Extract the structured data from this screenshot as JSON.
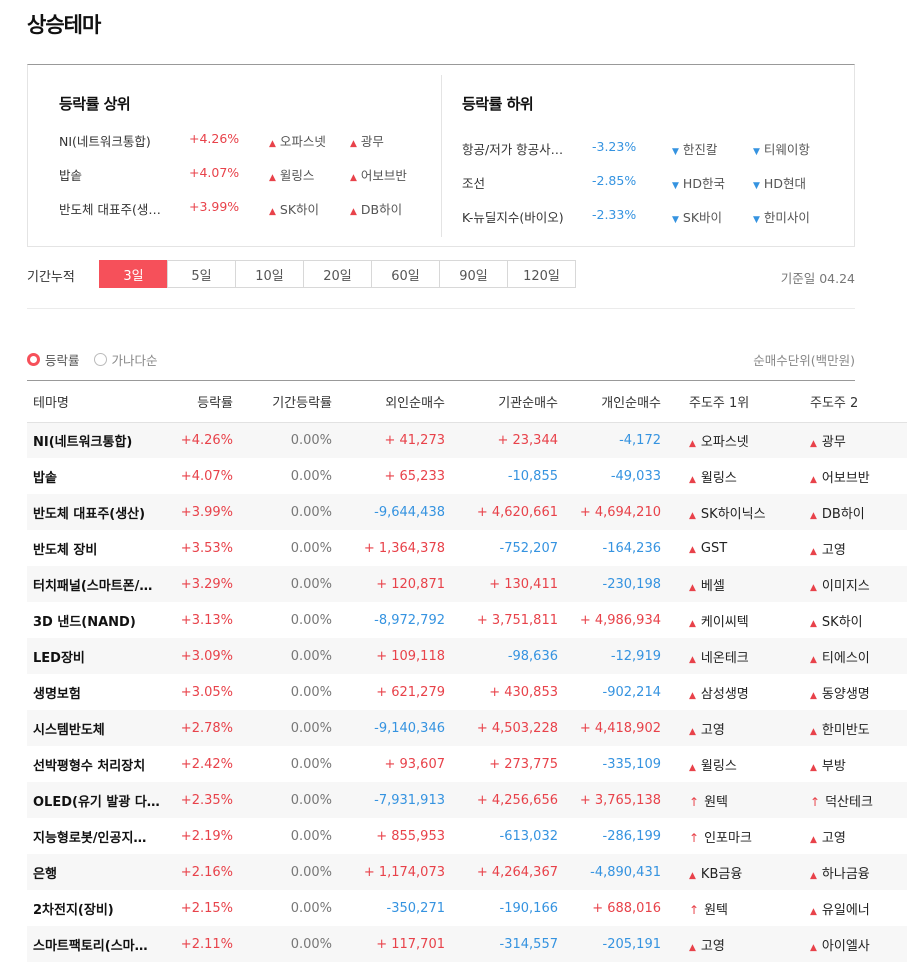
{
  "page": {
    "title": "상승테마"
  },
  "summary": {
    "top_title": "등락률 상위",
    "bottom_title": "등락률 하위",
    "top": [
      {
        "name": "NI(네트워크통합)",
        "pct": "+4.26%",
        "s1": "오파스넷",
        "s2": "광무"
      },
      {
        "name": "밥솥",
        "pct": "+4.07%",
        "s1": "윌링스",
        "s2": "어보브반"
      },
      {
        "name": "반도체 대표주(생…",
        "pct": "+3.99%",
        "s1": "SK하이",
        "s2": "DB하이"
      }
    ],
    "bottom": [
      {
        "name": "항공/저가 항공사…",
        "pct": "-3.23%",
        "s1": "한진칼",
        "s2": "티웨이항"
      },
      {
        "name": "조선",
        "pct": "-2.85%",
        "s1": "HD한국",
        "s2": "HD현대"
      },
      {
        "name": "K-뉴딜지수(바이오)",
        "pct": "-2.33%",
        "s1": "SK바이",
        "s2": "한미사이"
      }
    ]
  },
  "period": {
    "label": "기간누적",
    "tabs": [
      "3일",
      "5일",
      "10일",
      "20일",
      "60일",
      "90일",
      "120일"
    ],
    "active": 0,
    "base_date": "기준일 04.24"
  },
  "sort": {
    "option1": "등락률",
    "option2": "가나다순",
    "unit": "순매수단위(백만원)"
  },
  "table": {
    "headers": [
      "테마명",
      "등락률",
      "기간등락률",
      "외인순매수",
      "기관순매수",
      "개인순매수",
      "주도주 1위",
      "주도주 2"
    ],
    "rows": [
      {
        "name": "NI(네트워크통합)",
        "pct": "+4.26%",
        "period": "0.00%",
        "foreign": "+ 41,273",
        "inst": "+ 23,344",
        "indiv": "-4,172",
        "lead1": "오파스넷",
        "lead1_arrow": "tri",
        "lead2": "광무",
        "lead2_arrow": "tri"
      },
      {
        "name": "밥솥",
        "pct": "+4.07%",
        "period": "0.00%",
        "foreign": "+ 65,233",
        "inst": "-10,855",
        "indiv": "-49,033",
        "lead1": "윌링스",
        "lead1_arrow": "tri",
        "lead2": "어보브반",
        "lead2_arrow": "tri"
      },
      {
        "name": "반도체 대표주(생산)",
        "pct": "+3.99%",
        "period": "0.00%",
        "foreign": "-9,644,438",
        "inst": "+ 4,620,661",
        "indiv": "+ 4,694,210",
        "lead1": "SK하이닉스",
        "lead1_arrow": "tri",
        "lead2": "DB하이",
        "lead2_arrow": "tri"
      },
      {
        "name": "반도체 장비",
        "pct": "+3.53%",
        "period": "0.00%",
        "foreign": "+ 1,364,378",
        "inst": "-752,207",
        "indiv": "-164,236",
        "lead1": "GST",
        "lead1_arrow": "tri",
        "lead2": "고영",
        "lead2_arrow": "tri"
      },
      {
        "name": "터치패널(스마트폰/…",
        "pct": "+3.29%",
        "period": "0.00%",
        "foreign": "+ 120,871",
        "inst": "+ 130,411",
        "indiv": "-230,198",
        "lead1": "베셀",
        "lead1_arrow": "tri",
        "lead2": "이미지스",
        "lead2_arrow": "tri"
      },
      {
        "name": "3D 낸드(NAND)",
        "pct": "+3.13%",
        "period": "0.00%",
        "foreign": "-8,972,792",
        "inst": "+ 3,751,811",
        "indiv": "+ 4,986,934",
        "lead1": "케이씨텍",
        "lead1_arrow": "tri",
        "lead2": "SK하이",
        "lead2_arrow": "tri"
      },
      {
        "name": "LED장비",
        "pct": "+3.09%",
        "period": "0.00%",
        "foreign": "+ 109,118",
        "inst": "-98,636",
        "indiv": "-12,919",
        "lead1": "네온테크",
        "lead1_arrow": "tri",
        "lead2": "티에스이",
        "lead2_arrow": "tri"
      },
      {
        "name": "생명보험",
        "pct": "+3.05%",
        "period": "0.00%",
        "foreign": "+ 621,279",
        "inst": "+ 430,853",
        "indiv": "-902,214",
        "lead1": "삼성생명",
        "lead1_arrow": "tri",
        "lead2": "동양생명",
        "lead2_arrow": "tri"
      },
      {
        "name": "시스템반도체",
        "pct": "+2.78%",
        "period": "0.00%",
        "foreign": "-9,140,346",
        "inst": "+ 4,503,228",
        "indiv": "+ 4,418,902",
        "lead1": "고영",
        "lead1_arrow": "tri",
        "lead2": "한미반도",
        "lead2_arrow": "tri"
      },
      {
        "name": "선박평형수 처리장치",
        "pct": "+2.42%",
        "period": "0.00%",
        "foreign": "+ 93,607",
        "inst": "+ 273,775",
        "indiv": "-335,109",
        "lead1": "윌링스",
        "lead1_arrow": "tri",
        "lead2": "부방",
        "lead2_arrow": "tri"
      },
      {
        "name": "OLED(유기 발광 다…",
        "pct": "+2.35%",
        "period": "0.00%",
        "foreign": "-7,931,913",
        "inst": "+ 4,256,656",
        "indiv": "+ 3,765,138",
        "lead1": "원텍",
        "lead1_arrow": "thin",
        "lead2": "덕산테크",
        "lead2_arrow": "thin"
      },
      {
        "name": "지능형로봇/인공지…",
        "pct": "+2.19%",
        "period": "0.00%",
        "foreign": "+ 855,953",
        "inst": "-613,032",
        "indiv": "-286,199",
        "lead1": "인포마크",
        "lead1_arrow": "thin",
        "lead2": "고영",
        "lead2_arrow": "tri"
      },
      {
        "name": "은행",
        "pct": "+2.16%",
        "period": "0.00%",
        "foreign": "+ 1,174,073",
        "inst": "+ 4,264,367",
        "indiv": "-4,890,431",
        "lead1": "KB금융",
        "lead1_arrow": "tri",
        "lead2": "하나금융",
        "lead2_arrow": "tri"
      },
      {
        "name": "2차전지(장비)",
        "pct": "+2.15%",
        "period": "0.00%",
        "foreign": "-350,271",
        "inst": "-190,166",
        "indiv": "+ 688,016",
        "lead1": "원텍",
        "lead1_arrow": "thin",
        "lead2": "유일에너",
        "lead2_arrow": "tri"
      },
      {
        "name": "스마트팩토리(스마…",
        "pct": "+2.11%",
        "period": "0.00%",
        "foreign": "+ 117,701",
        "inst": "-314,557",
        "indiv": "-205,191",
        "lead1": "고영",
        "lead1_arrow": "tri",
        "lead2": "아이엘사",
        "lead2_arrow": "tri"
      }
    ]
  },
  "colors": {
    "up": "#e8424a",
    "down": "#3593e0",
    "accent": "#f6505a"
  }
}
